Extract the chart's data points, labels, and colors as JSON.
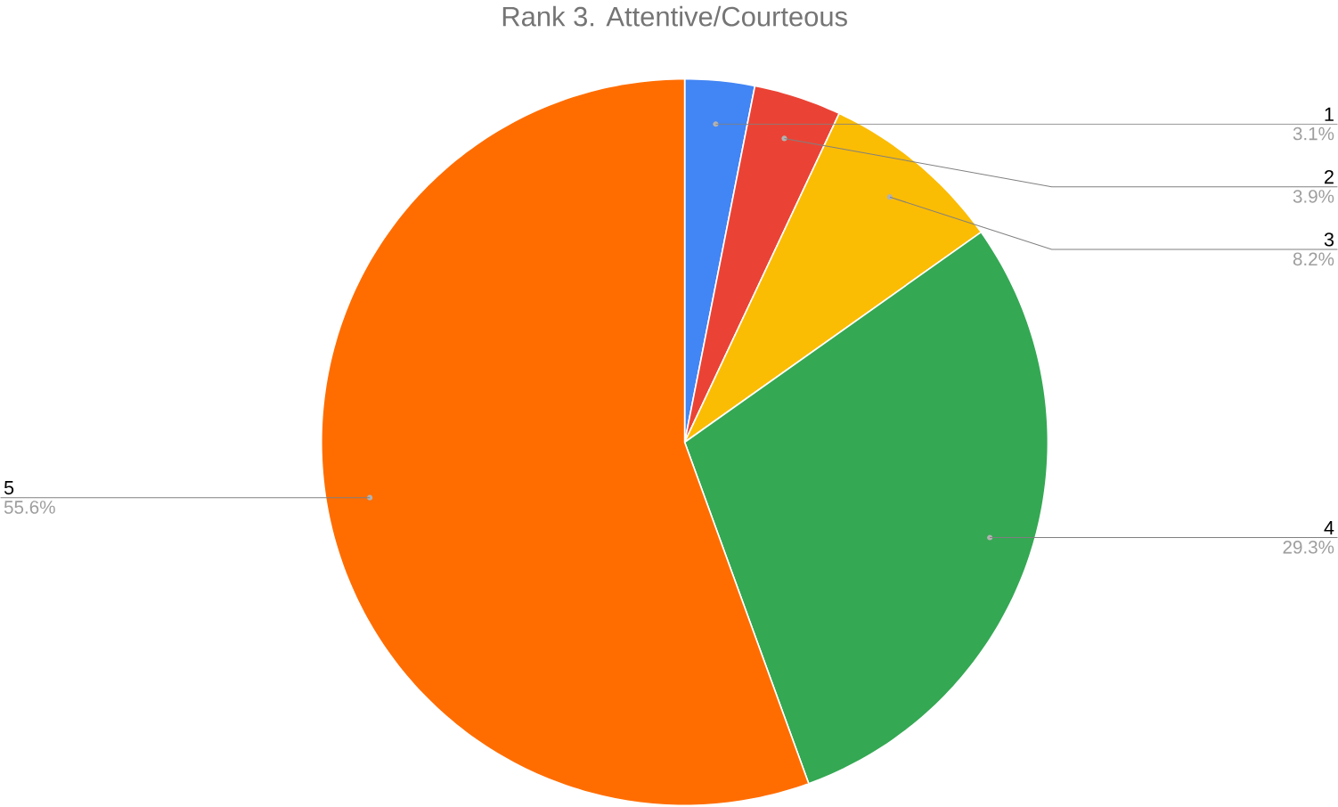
{
  "chart_data": {
    "type": "pie",
    "title": "Rank 3. Attentive/Courteous",
    "categories": [
      "1",
      "2",
      "3",
      "4",
      "5"
    ],
    "values": [
      3.1,
      3.9,
      8.2,
      29.3,
      55.6
    ],
    "value_labels": [
      "3.1%",
      "3.9%",
      "8.2%",
      "29.3%",
      "55.6%"
    ],
    "colors": [
      "#4285f4",
      "#ea4335",
      "#fbbc04",
      "#34a853",
      "#ff6d01"
    ]
  }
}
